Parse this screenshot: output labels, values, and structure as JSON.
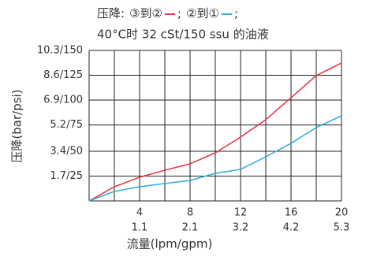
{
  "chart_data": {
    "type": "line",
    "title": "压降:",
    "subtitle": "40°C时 32 cSt/150 ssu 的油液",
    "legend_suffix": ";",
    "x_label": "流量(lpm/gpm)",
    "y_label": "压降(bar/psi)",
    "x": [
      0,
      2,
      4,
      6,
      8,
      10,
      12,
      14,
      16,
      18,
      20
    ],
    "series": [
      {
        "name": "③到②",
        "color": "#e8303f",
        "values": [
          0,
          0.97,
          1.62,
          2.1,
          2.54,
          3.29,
          4.37,
          5.56,
          7.07,
          8.58,
          9.44
        ]
      },
      {
        "name": "②到①",
        "color": "#2aa9dc",
        "values": [
          0,
          0.65,
          0.97,
          1.19,
          1.4,
          1.89,
          2.16,
          3.02,
          3.94,
          5.02,
          5.83
        ]
      }
    ],
    "xlim": [
      0,
      20
    ],
    "xticks": [
      4,
      8,
      12,
      16,
      20
    ],
    "xticks_secondary": [
      "1.1",
      "2.1",
      "3.2",
      "4.2",
      "5.3"
    ],
    "x_grid": [
      0,
      2,
      4,
      6,
      8,
      10,
      12,
      14,
      16,
      18,
      20
    ],
    "ylim": [
      0,
      10.3
    ],
    "yticks": [
      {
        "value": 0,
        "label": null
      },
      {
        "value": 1.7,
        "label": "1.7/25"
      },
      {
        "value": 3.4,
        "label": "3.4/50"
      },
      {
        "value": 5.2,
        "label": "5.2/75"
      },
      {
        "value": 6.9,
        "label": "6.9/100"
      },
      {
        "value": 8.6,
        "label": "8.6/125"
      },
      {
        "value": 10.3,
        "label": "10.3/150"
      }
    ],
    "grid": true
  }
}
